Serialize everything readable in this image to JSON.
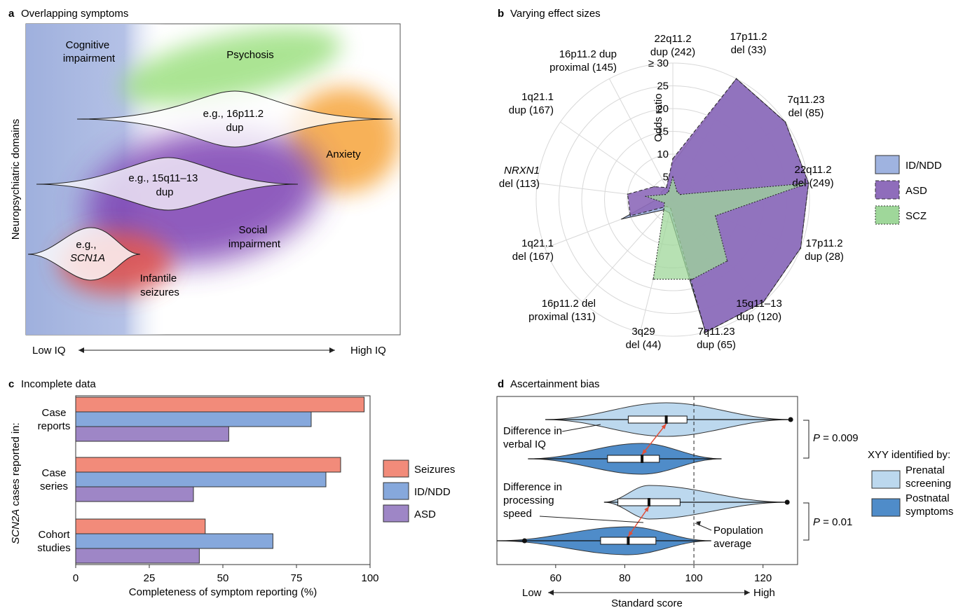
{
  "panels": {
    "a": {
      "letter": "a",
      "title": "Overlapping symptoms"
    },
    "b": {
      "letter": "b",
      "title": "Varying effect sizes"
    },
    "c": {
      "letter": "c",
      "title": "Incomplete data"
    },
    "d": {
      "letter": "d",
      "title": "Ascertainment bias"
    }
  },
  "panel_a": {
    "ylabel": "Neuropsychiatric domains",
    "x_low": "Low IQ",
    "x_high": "High IQ",
    "domains": {
      "cognitive": [
        "Cognitive",
        "impairment"
      ],
      "psychosis": "Psychosis",
      "anxiety": "Anxiety",
      "social": [
        "Social",
        "impairment"
      ],
      "seizures": [
        "Infantile",
        "seizures"
      ]
    },
    "examples": {
      "dup16": [
        "e.g., 16p11.2",
        "dup"
      ],
      "dup15": [
        "e.g., 15q11–13",
        "dup"
      ],
      "scn1a": [
        "e.g.,",
        "SCN1A"
      ]
    },
    "colors": {
      "cognitive": "#9fb0dd",
      "psychosis": "#88d868",
      "anxiety": "#f7a53a",
      "social": "#7a3cb0",
      "seizures": "#e0504a"
    }
  },
  "chart_data": [
    {
      "panel": "b",
      "type": "radar",
      "axis_label": "Odds ratio",
      "ticks": [
        5,
        10,
        15,
        20,
        25,
        "≥ 30"
      ],
      "rmax": 30,
      "categories": [
        [
          "22q11.2",
          "dup (242)"
        ],
        [
          "17p11.2",
          "del (33)"
        ],
        [
          "7q11.23",
          "del (85)"
        ],
        [
          "22q11.2",
          "del (249)"
        ],
        [
          "17p11.2",
          "dup (28)"
        ],
        [
          "15q11–13",
          "dup (120)"
        ],
        [
          "7q11.23",
          "dup (65)"
        ],
        [
          "3q29",
          "del (44)"
        ],
        [
          "16p11.2 del",
          "proximal (131)"
        ],
        [
          "1q21.1",
          "del (167)"
        ],
        [
          "NRXN1",
          "del (113)"
        ],
        [
          "1q21.1",
          "dup (167)"
        ],
        [
          "16p11.2 dup",
          "proximal (145)"
        ]
      ],
      "series": [
        {
          "name": "ID/NDD",
          "color": "#9fb3e0",
          "values": [
            8,
            30,
            30,
            30,
            30,
            30,
            30,
            3,
            3,
            12,
            3,
            3,
            3
          ]
        },
        {
          "name": "ASD",
          "color": "#8f6dbb",
          "values": [
            9,
            30,
            30,
            30,
            30,
            30,
            30,
            2,
            2,
            10,
            10,
            5,
            3
          ]
        },
        {
          "name": "SCZ",
          "color": "#9fd79a",
          "values": [
            5,
            2,
            2,
            30,
            10,
            18,
            18,
            18,
            3,
            2,
            6,
            2,
            2
          ]
        }
      ]
    },
    {
      "panel": "c",
      "type": "bar",
      "orientation": "horizontal",
      "ylabel": "SCN2A cases reported in:",
      "ylabel_italic": "SCN2A",
      "ylabel_rest": " cases reported in:",
      "xlabel": "Completeness of symptom reporting (%)",
      "xlim": [
        0,
        100
      ],
      "xticks": [
        0,
        25,
        50,
        75,
        100
      ],
      "categories": [
        [
          "Case",
          "reports"
        ],
        [
          "Case",
          "series"
        ],
        [
          "Cohort",
          "studies"
        ]
      ],
      "series": [
        {
          "name": "Seizures",
          "color": "#f28b7a",
          "values": [
            98,
            90,
            44
          ]
        },
        {
          "name": "ID/NDD",
          "color": "#86a8dc",
          "values": [
            80,
            85,
            67
          ]
        },
        {
          "name": "ASD",
          "color": "#9e86c6",
          "values": [
            52,
            40,
            42
          ]
        }
      ]
    },
    {
      "panel": "d",
      "type": "violin",
      "xlabel": "Standard score",
      "x_low": "Low",
      "x_high": "High",
      "xlim": [
        43,
        130
      ],
      "xticks": [
        60,
        80,
        100,
        120
      ],
      "legend_title": "XYY identified by:",
      "groups": [
        {
          "name": [
            "Prenatal",
            "screening"
          ],
          "color": "#bcd8ee"
        },
        {
          "name": [
            "Postnatal",
            "symptoms"
          ],
          "color": "#4f8cc9"
        }
      ],
      "violins": [
        {
          "measure": "verbal IQ",
          "group": "Prenatal screening",
          "min": 57,
          "q1": 81,
          "median": 92,
          "q3": 98,
          "max": 128,
          "outlier": 128
        },
        {
          "measure": "verbal IQ",
          "group": "Postnatal symptoms",
          "min": 52,
          "q1": 75,
          "median": 85,
          "q3": 90,
          "max": 108
        },
        {
          "measure": "processing speed",
          "group": "Prenatal screening",
          "min": 74,
          "q1": 78,
          "median": 87,
          "q3": 96,
          "max": 127,
          "outlier": 127
        },
        {
          "measure": "processing speed",
          "group": "Postnatal symptoms",
          "min": 43,
          "q1": 73,
          "median": 81,
          "q3": 89,
          "max": 105,
          "outlier": 51
        }
      ],
      "annotations": {
        "diff_verbal": [
          "Difference in",
          "verbal IQ"
        ],
        "diff_speed": [
          "Difference in",
          "processing",
          "speed"
        ],
        "pop_avg": [
          "Population",
          "average"
        ],
        "pop_value": 100,
        "p1": "0.009",
        "p2": "0.01",
        "p_label": "P"
      }
    }
  ]
}
